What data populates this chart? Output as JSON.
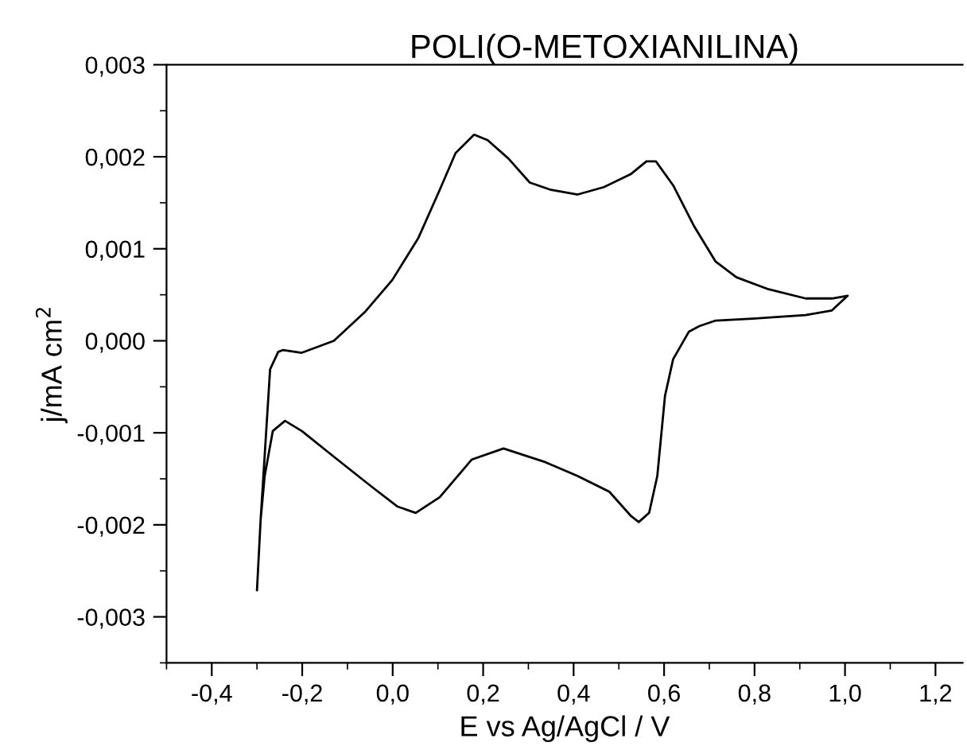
{
  "chart_data": {
    "type": "line",
    "title": "POLI(O-METOXIANILINA)",
    "xlabel": "E vs Ag/AgCl / V",
    "ylabel": "j/mA cm$^{2}$",
    "xlim": [
      -0.5,
      1.26
    ],
    "ylim": [
      -0.0035,
      0.003
    ],
    "xticks": [
      {
        "value": -0.4,
        "label": "-0,4"
      },
      {
        "value": -0.2,
        "label": "-0,2"
      },
      {
        "value": 0.0,
        "label": "0,0"
      },
      {
        "value": 0.2,
        "label": "0,2"
      },
      {
        "value": 0.4,
        "label": "0,4"
      },
      {
        "value": 0.6,
        "label": "0,6"
      },
      {
        "value": 0.8,
        "label": "0,8"
      },
      {
        "value": 1.0,
        "label": "1,0"
      },
      {
        "value": 1.2,
        "label": "1,2"
      }
    ],
    "yticks": [
      {
        "value": -0.003,
        "label": "-0,003"
      },
      {
        "value": -0.002,
        "label": "-0,002"
      },
      {
        "value": -0.001,
        "label": "-0,001"
      },
      {
        "value": 0.0,
        "label": "0,000"
      },
      {
        "value": 0.001,
        "label": "0,001"
      },
      {
        "value": 0.002,
        "label": "0,002"
      },
      {
        "value": 0.003,
        "label": "0,003"
      }
    ],
    "grid": false,
    "legend": false,
    "series": [
      {
        "color": "#000000",
        "x": [
          -0.3,
          -0.292,
          -0.271,
          -0.253,
          -0.242,
          -0.201,
          -0.13,
          -0.06,
          -0.001,
          0.057,
          0.104,
          0.139,
          0.18,
          0.21,
          0.256,
          0.303,
          0.35,
          0.409,
          0.467,
          0.526,
          0.561,
          0.582,
          0.62,
          0.667,
          0.714,
          0.76,
          0.831,
          0.913,
          0.971,
          1.006,
          0.971,
          0.913,
          0.796,
          0.714,
          0.678,
          0.655,
          0.62,
          0.602,
          0.585,
          0.567,
          0.544,
          0.526,
          0.479,
          0.409,
          0.338,
          0.245,
          0.175,
          0.104,
          0.051,
          0.01,
          -0.048,
          -0.13,
          -0.201,
          -0.238,
          -0.265,
          -0.283,
          -0.292
        ],
        "values": [
          -0.00271,
          -0.00195,
          -0.00031,
          -0.00012,
          -0.0001,
          -0.00013,
          0.0,
          0.00032,
          0.00066,
          0.00112,
          0.00164,
          0.00204,
          0.00224,
          0.00218,
          0.00198,
          0.00172,
          0.00164,
          0.00159,
          0.00167,
          0.00181,
          0.00195,
          0.00195,
          0.00169,
          0.00124,
          0.00086,
          0.00069,
          0.00056,
          0.00046,
          0.00046,
          0.00049,
          0.00033,
          0.00028,
          0.00024,
          0.00022,
          0.00016,
          0.0001,
          -0.0002,
          -0.0006,
          -0.00147,
          -0.00187,
          -0.00197,
          -0.0019,
          -0.00164,
          -0.00147,
          -0.00132,
          -0.00117,
          -0.00129,
          -0.0017,
          -0.00187,
          -0.0018,
          -0.00158,
          -0.00126,
          -0.00098,
          -0.00087,
          -0.00098,
          -0.00147,
          -0.00195
        ]
      }
    ]
  }
}
